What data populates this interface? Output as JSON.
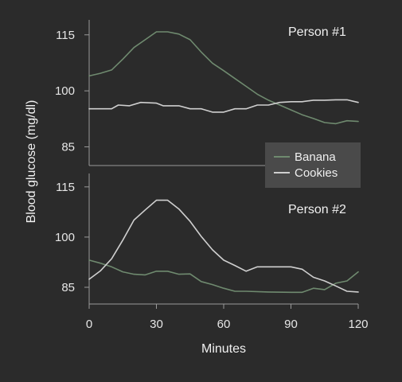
{
  "chart_data": {
    "type": "line",
    "xlabel": "Minutes",
    "ylabel": "Blood glucose (mg/dl)",
    "x_ticks": [
      0,
      30,
      60,
      90,
      120
    ],
    "xlim": [
      0,
      120
    ],
    "legend": {
      "placement": "right-middle",
      "entries": [
        {
          "name": "Banana",
          "color": "#6f8a6f"
        },
        {
          "name": "Cookies",
          "color": "#cfcfcf"
        }
      ]
    },
    "panels": [
      {
        "title": "Person #1",
        "ylim": [
          80,
          119
        ],
        "y_ticks": [
          85,
          100,
          115
        ],
        "series": [
          {
            "name": "Banana",
            "color": "#6f8a6f",
            "points": [
              [
                0,
                104
              ],
              [
                5,
                104.7
              ],
              [
                10,
                105.6
              ],
              [
                15,
                108.5
              ],
              [
                20,
                111.6
              ],
              [
                25,
                113.7
              ],
              [
                30,
                115.8
              ],
              [
                35,
                115.8
              ],
              [
                40,
                115.2
              ],
              [
                45,
                113.7
              ],
              [
                50,
                110.4
              ],
              [
                55,
                107.4
              ],
              [
                60,
                105.4
              ],
              [
                65,
                103.3
              ],
              [
                70,
                101.2
              ],
              [
                75,
                99.1
              ],
              [
                80,
                97.5
              ],
              [
                85,
                96.2
              ],
              [
                90,
                94.9
              ],
              [
                95,
                93.6
              ],
              [
                100,
                92.6
              ],
              [
                105,
                91.5
              ],
              [
                110,
                91.2
              ],
              [
                115,
                92
              ],
              [
                120,
                91.8
              ]
            ]
          },
          {
            "name": "Cookies",
            "color": "#cfcfcf",
            "points": [
              [
                0,
                95.2
              ],
              [
                5,
                95.2
              ],
              [
                10,
                95.2
              ],
              [
                13,
                96.2
              ],
              [
                18,
                96.0
              ],
              [
                23,
                96.9
              ],
              [
                30,
                96.7
              ],
              [
                33,
                96.0
              ],
              [
                40,
                96.0
              ],
              [
                45,
                95.2
              ],
              [
                50,
                95.2
              ],
              [
                55,
                94.3
              ],
              [
                60,
                94.3
              ],
              [
                65,
                95.2
              ],
              [
                70,
                95.2
              ],
              [
                75,
                96.2
              ],
              [
                80,
                96.2
              ],
              [
                85,
                96.9
              ],
              [
                90,
                97.1
              ],
              [
                95,
                97.1
              ],
              [
                100,
                97.5
              ],
              [
                105,
                97.5
              ],
              [
                110,
                97.6
              ],
              [
                115,
                97.6
              ],
              [
                120,
                96.9
              ]
            ]
          }
        ]
      },
      {
        "title": "Person #2",
        "ylim": [
          80,
          119
        ],
        "y_ticks": [
          85,
          100,
          115
        ],
        "series": [
          {
            "name": "Banana",
            "color": "#6f8a6f",
            "points": [
              [
                0,
                93.1
              ],
              [
                5,
                92.2
              ],
              [
                10,
                91.1
              ],
              [
                15,
                89.6
              ],
              [
                20,
                88.9
              ],
              [
                25,
                88.7
              ],
              [
                30,
                89.8
              ],
              [
                35,
                89.8
              ],
              [
                40,
                88.9
              ],
              [
                45,
                89.0
              ],
              [
                50,
                86.7
              ],
              [
                55,
                85.8
              ],
              [
                60,
                84.7
              ],
              [
                65,
                83.8
              ],
              [
                70,
                83.8
              ],
              [
                80,
                83.6
              ],
              [
                90,
                83.5
              ],
              [
                95,
                83.5
              ],
              [
                100,
                84.7
              ],
              [
                105,
                84.3
              ],
              [
                110,
                86.2
              ],
              [
                115,
                86.9
              ],
              [
                120,
                89.6
              ]
            ]
          },
          {
            "name": "Cookies",
            "color": "#cfcfcf",
            "points": [
              [
                0,
                87.4
              ],
              [
                5,
                89.9
              ],
              [
                10,
                93.5
              ],
              [
                15,
                99.1
              ],
              [
                20,
                105.1
              ],
              [
                25,
                108.1
              ],
              [
                30,
                111.0
              ],
              [
                35,
                111.0
              ],
              [
                40,
                108.4
              ],
              [
                45,
                104.7
              ],
              [
                50,
                100.2
              ],
              [
                55,
                96.2
              ],
              [
                60,
                93.1
              ],
              [
                65,
                91.5
              ],
              [
                70,
                89.8
              ],
              [
                75,
                91.1
              ],
              [
                80,
                91.1
              ],
              [
                85,
                91.1
              ],
              [
                90,
                91.1
              ],
              [
                95,
                90.4
              ],
              [
                100,
                88.0
              ],
              [
                105,
                86.9
              ],
              [
                110,
                85.4
              ],
              [
                115,
                83.8
              ],
              [
                120,
                83.6
              ]
            ]
          }
        ]
      }
    ]
  }
}
